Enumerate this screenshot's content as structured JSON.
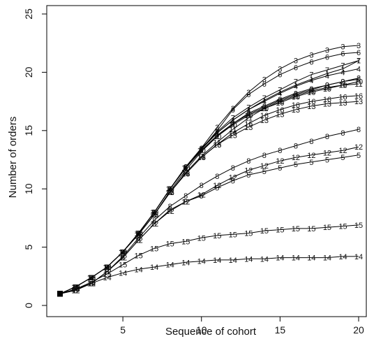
{
  "chart_data": {
    "type": "line",
    "title": "",
    "xlabel": "Sequence of cohort",
    "ylabel": "Number of orders",
    "xlim": [
      1,
      20
    ],
    "ylim": [
      0,
      25
    ],
    "xticks": [
      5,
      10,
      15,
      20
    ],
    "yticks": [
      0,
      5,
      10,
      15,
      20,
      25
    ],
    "grid": false,
    "legend": "none",
    "x": [
      1,
      2,
      3,
      4,
      5,
      6,
      7,
      8,
      9,
      10,
      11,
      12,
      13,
      14,
      15,
      16,
      17,
      18,
      19,
      20
    ],
    "series": [
      {
        "label": "1",
        "values": [
          1.0,
          1.6,
          2.4,
          3.3,
          4.6,
          6.2,
          8.0,
          10.0,
          11.8,
          13.4,
          14.8,
          15.9,
          16.8,
          17.6,
          18.3,
          18.9,
          19.4,
          19.9,
          20.3,
          21.0
        ]
      },
      {
        "label": "2",
        "values": [
          1.0,
          1.6,
          2.4,
          3.3,
          4.6,
          6.1,
          7.8,
          9.8,
          11.6,
          13.2,
          14.5,
          15.6,
          16.5,
          17.1,
          17.7,
          18.2,
          18.6,
          18.9,
          19.2,
          19.5
        ]
      },
      {
        "label": "3",
        "values": [
          1.0,
          1.6,
          2.4,
          3.3,
          4.6,
          6.2,
          8.0,
          10.0,
          11.9,
          13.5,
          15.3,
          16.9,
          18.3,
          19.4,
          20.3,
          21.0,
          21.5,
          21.9,
          22.2,
          22.3
        ]
      },
      {
        "label": "4",
        "values": [
          1.0,
          1.6,
          2.4,
          3.3,
          4.6,
          6.2,
          8.0,
          10.0,
          11.8,
          13.5,
          14.8,
          15.9,
          16.8,
          17.5,
          18.2,
          18.8,
          19.3,
          19.7,
          20.0,
          20.3
        ]
      },
      {
        "label": "5",
        "values": [
          1.0,
          1.3,
          1.9,
          2.9,
          4.1,
          5.6,
          7.0,
          8.2,
          8.9,
          9.4,
          10.1,
          10.7,
          11.2,
          11.5,
          11.8,
          12.1,
          12.3,
          12.5,
          12.7,
          12.9
        ]
      },
      {
        "label": "6",
        "values": [
          1.0,
          1.6,
          2.4,
          3.3,
          4.6,
          6.2,
          8.0,
          10.0,
          11.9,
          13.4,
          15.0,
          16.8,
          18.1,
          19.0,
          19.8,
          20.4,
          20.9,
          21.3,
          21.6,
          21.7
        ]
      },
      {
        "label": "7",
        "values": [
          1.0,
          1.6,
          2.4,
          3.3,
          4.6,
          6.2,
          8.0,
          10.0,
          11.8,
          13.4,
          14.9,
          16.1,
          17.0,
          17.8,
          18.5,
          19.2,
          19.8,
          20.2,
          20.6,
          21.0
        ]
      },
      {
        "label": "8",
        "values": [
          1.0,
          1.3,
          1.9,
          2.9,
          4.2,
          5.8,
          7.3,
          8.5,
          9.4,
          10.3,
          11.1,
          11.8,
          12.4,
          12.9,
          13.3,
          13.7,
          14.1,
          14.5,
          14.8,
          15.1
        ]
      },
      {
        "label": "9",
        "values": [
          1.0,
          1.6,
          2.4,
          3.3,
          4.6,
          6.2,
          8.0,
          10.0,
          11.8,
          13.3,
          14.6,
          15.6,
          16.4,
          17.0,
          17.6,
          18.1,
          18.5,
          18.9,
          19.2,
          19.4
        ]
      },
      {
        "label": "10",
        "values": [
          1.0,
          1.6,
          2.4,
          3.3,
          4.6,
          6.2,
          8.0,
          10.0,
          11.8,
          13.3,
          14.5,
          15.5,
          16.3,
          16.9,
          17.4,
          17.9,
          18.3,
          18.6,
          18.9,
          19.2
        ]
      },
      {
        "label": "11",
        "values": [
          1.0,
          1.6,
          2.4,
          3.3,
          4.6,
          6.1,
          7.8,
          9.7,
          11.4,
          12.8,
          14.0,
          15.1,
          16.1,
          16.9,
          17.5,
          18.0,
          18.4,
          18.7,
          18.9,
          19.0
        ]
      },
      {
        "label": "12",
        "values": [
          1.0,
          1.3,
          1.9,
          2.9,
          4.1,
          5.6,
          7.0,
          8.1,
          8.9,
          9.5,
          10.3,
          11.0,
          11.6,
          12.0,
          12.4,
          12.7,
          12.9,
          13.1,
          13.3,
          13.6
        ]
      },
      {
        "label": "13",
        "values": [
          1.0,
          1.6,
          2.4,
          3.3,
          4.6,
          6.1,
          7.8,
          9.7,
          11.3,
          12.7,
          13.8,
          14.6,
          15.3,
          15.9,
          16.4,
          16.8,
          17.1,
          17.3,
          17.4,
          17.5
        ]
      },
      {
        "label": "14",
        "values": [
          1.0,
          1.4,
          1.9,
          2.4,
          2.8,
          3.1,
          3.3,
          3.5,
          3.7,
          3.8,
          3.9,
          3.9,
          4.0,
          4.0,
          4.1,
          4.1,
          4.1,
          4.1,
          4.2,
          4.2
        ]
      },
      {
        "label": "15",
        "values": [
          1.0,
          1.4,
          2.0,
          2.7,
          3.5,
          4.3,
          4.9,
          5.3,
          5.5,
          5.8,
          6.0,
          6.1,
          6.2,
          6.4,
          6.5,
          6.6,
          6.6,
          6.7,
          6.8,
          6.9
        ]
      },
      {
        "label": "16",
        "values": [
          1.0,
          1.6,
          2.4,
          3.3,
          4.6,
          6.1,
          7.8,
          9.7,
          11.3,
          12.7,
          13.8,
          14.8,
          15.6,
          16.3,
          16.8,
          17.2,
          17.5,
          17.7,
          17.9,
          18.0
        ]
      }
    ]
  }
}
